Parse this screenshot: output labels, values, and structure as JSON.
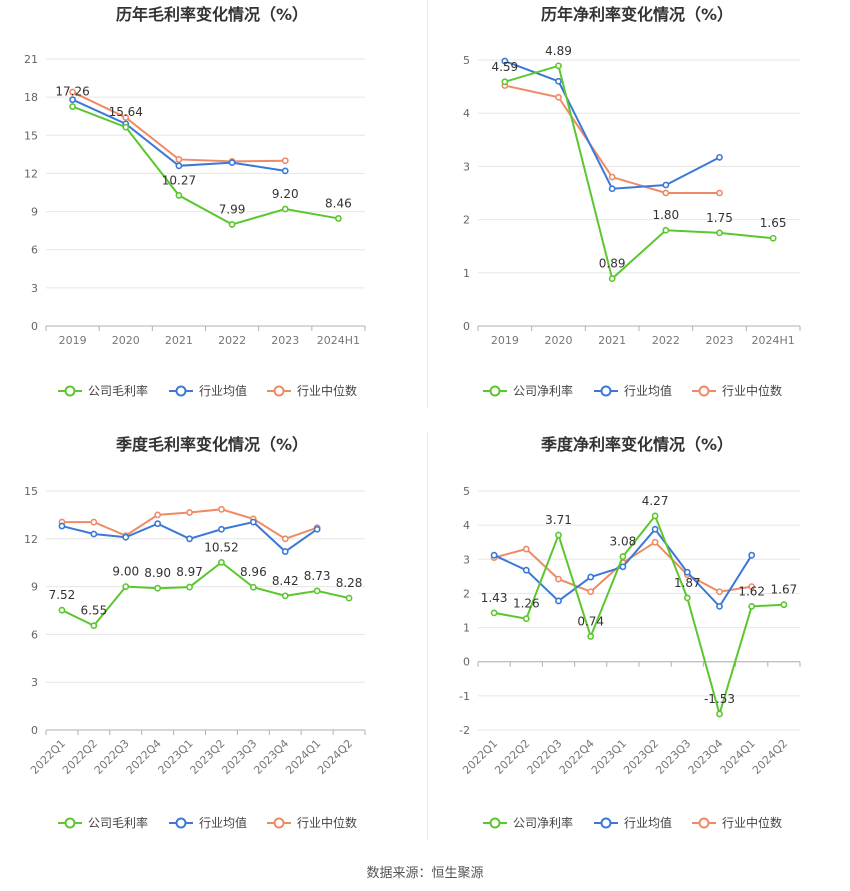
{
  "footer": {
    "source": "数据来源：恒生聚源"
  },
  "colors": {
    "company": "#5bc72e",
    "avg": "#3b78d8",
    "median": "#f08a65",
    "grid": "#e6e6e6",
    "axis": "#b0b0b0"
  },
  "chart_data": [
    {
      "type": "line",
      "title": "历年毛利率变化情况（%）",
      "categories": [
        "2019",
        "2020",
        "2021",
        "2022",
        "2023",
        "2024H1"
      ],
      "yticks": [
        "0",
        "3",
        "6",
        "9",
        "12",
        "15",
        "18",
        "21"
      ],
      "ylim": [
        0,
        21
      ],
      "grid": true,
      "legend_position": "bottom",
      "series": [
        {
          "name": "公司毛利率",
          "values": [
            17.26,
            15.64,
            10.27,
            7.99,
            9.2,
            8.46
          ],
          "labels": [
            "17.26",
            "15.64",
            "10.27",
            "7.99",
            "9.20",
            "8.46"
          ]
        },
        {
          "name": "行业均值",
          "values": [
            17.8,
            15.9,
            12.6,
            12.85,
            12.2,
            null
          ]
        },
        {
          "name": "行业中位数",
          "values": [
            18.4,
            16.4,
            13.1,
            12.95,
            13.0,
            null
          ]
        }
      ]
    },
    {
      "type": "line",
      "title": "历年净利率变化情况（%）",
      "categories": [
        "2019",
        "2020",
        "2021",
        "2022",
        "2023",
        "2024H1"
      ],
      "yticks": [
        "0",
        "1",
        "2",
        "3",
        "4",
        "5"
      ],
      "ylim": [
        0,
        5
      ],
      "grid": true,
      "legend_position": "bottom",
      "series": [
        {
          "name": "公司净利率",
          "values": [
            4.59,
            4.89,
            0.89,
            1.8,
            1.75,
            1.65
          ],
          "labels": [
            "4.59",
            "4.89",
            "0.89",
            "1.80",
            "1.75",
            "1.65"
          ]
        },
        {
          "name": "行业均值",
          "values": [
            4.98,
            4.6,
            2.58,
            2.65,
            3.17,
            null
          ]
        },
        {
          "name": "行业中位数",
          "values": [
            4.52,
            4.3,
            2.8,
            2.5,
            2.5,
            null
          ]
        }
      ]
    },
    {
      "type": "line",
      "title": "季度毛利率变化情况（%）",
      "categories": [
        "2022Q1",
        "2022Q2",
        "2022Q3",
        "2022Q4",
        "2023Q1",
        "2023Q2",
        "2023Q3",
        "2023Q4",
        "2024Q1",
        "2024Q2"
      ],
      "yticks": [
        "0",
        "3",
        "6",
        "9",
        "12",
        "15"
      ],
      "ylim": [
        0,
        15
      ],
      "grid": true,
      "legend_position": "bottom",
      "series": [
        {
          "name": "公司毛利率",
          "values": [
            7.52,
            6.55,
            9.0,
            8.9,
            8.97,
            10.52,
            8.96,
            8.42,
            8.73,
            8.28
          ],
          "labels": [
            "7.52",
            "6.55",
            "9.00",
            "8.90",
            "8.97",
            "10.52",
            "8.96",
            "8.42",
            "8.73",
            "8.28"
          ]
        },
        {
          "name": "行业均值",
          "values": [
            12.8,
            12.3,
            12.1,
            12.95,
            12.0,
            12.6,
            13.05,
            11.2,
            12.6,
            null
          ]
        },
        {
          "name": "行业中位数",
          "values": [
            13.05,
            13.05,
            12.2,
            13.5,
            13.65,
            13.85,
            13.25,
            12.0,
            12.7,
            null
          ]
        }
      ]
    },
    {
      "type": "line",
      "title": "季度净利率变化情况（%）",
      "categories": [
        "2022Q1",
        "2022Q2",
        "2022Q3",
        "2022Q4",
        "2023Q1",
        "2023Q2",
        "2023Q3",
        "2023Q4",
        "2024Q1",
        "2024Q2"
      ],
      "yticks": [
        "-2",
        "-1",
        "0",
        "1",
        "2",
        "3",
        "4",
        "5"
      ],
      "ylim": [
        -2,
        5
      ],
      "grid": true,
      "legend_position": "bottom",
      "series": [
        {
          "name": "公司净利率",
          "values": [
            1.43,
            1.26,
            3.71,
            0.74,
            3.08,
            4.27,
            1.87,
            -1.53,
            1.62,
            1.67
          ],
          "labels": [
            "1.43",
            "1.26",
            "3.71",
            "0.74",
            "3.08",
            "4.27",
            "1.87",
            "-1.53",
            "1.62",
            "1.67"
          ]
        },
        {
          "name": "行业均值",
          "values": [
            3.12,
            2.68,
            1.78,
            2.48,
            2.78,
            3.88,
            2.62,
            1.62,
            3.12,
            null
          ]
        },
        {
          "name": "行业中位数",
          "values": [
            3.05,
            3.3,
            2.42,
            2.05,
            2.9,
            3.5,
            2.55,
            2.05,
            2.2,
            null
          ]
        }
      ]
    }
  ]
}
